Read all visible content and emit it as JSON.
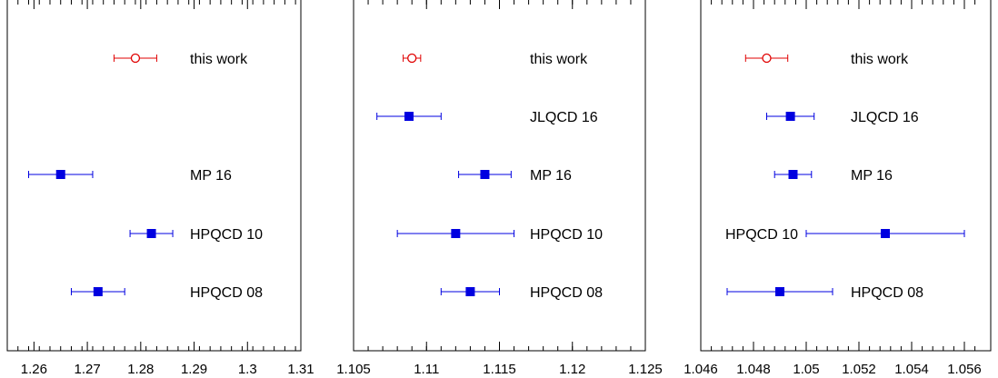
{
  "chart_data": [
    {
      "type": "scatter",
      "xlim": [
        1.255,
        1.31
      ],
      "xticks": [
        "1.26",
        "1.27",
        "1.28",
        "1.29",
        "1.3",
        "1.31"
      ],
      "xtick_values": [
        1.26,
        1.27,
        1.28,
        1.29,
        1.3,
        1.31
      ],
      "minor_step": 0.002,
      "grid": false,
      "entries": [
        {
          "label": "this work",
          "x": 1.279,
          "err": 0.004,
          "style": "open-circle",
          "color": "#e00000",
          "row": 0
        },
        {
          "label": "MP 16",
          "x": 1.265,
          "err": 0.006,
          "style": "filled-square",
          "color": "#0000e0",
          "row": 2
        },
        {
          "label": "HPQCD 10",
          "x": 1.282,
          "err": 0.004,
          "style": "filled-square",
          "color": "#0000e0",
          "row": 3
        },
        {
          "label": "HPQCD 08",
          "x": 1.272,
          "err": 0.005,
          "style": "filled-square",
          "color": "#0000e0",
          "row": 4
        }
      ]
    },
    {
      "type": "scatter",
      "xlim": [
        1.105,
        1.125
      ],
      "xticks": [
        "1.105",
        "1.11",
        "1.115",
        "1.12",
        "1.125"
      ],
      "xtick_values": [
        1.105,
        1.11,
        1.115,
        1.12,
        1.125
      ],
      "minor_step": 0.001,
      "grid": false,
      "entries": [
        {
          "label": "this work",
          "x": 1.109,
          "err": 0.0006,
          "style": "open-circle",
          "color": "#e00000",
          "row": 0
        },
        {
          "label": "JLQCD 16",
          "x": 1.1088,
          "err": 0.0022,
          "style": "filled-square",
          "color": "#0000e0",
          "row": 1
        },
        {
          "label": "MP 16",
          "x": 1.114,
          "err": 0.0018,
          "style": "filled-square",
          "color": "#0000e0",
          "row": 2
        },
        {
          "label": "HPQCD 10",
          "x": 1.112,
          "err": 0.004,
          "style": "filled-square",
          "color": "#0000e0",
          "row": 3
        },
        {
          "label": "HPQCD 08",
          "x": 1.113,
          "err": 0.002,
          "style": "filled-square",
          "color": "#0000e0",
          "row": 4
        }
      ]
    },
    {
      "type": "scatter",
      "xlim": [
        1.046,
        1.057
      ],
      "xticks": [
        "1.046",
        "1.048",
        "1.05",
        "1.052",
        "1.054",
        "1.056"
      ],
      "xtick_values": [
        1.046,
        1.048,
        1.05,
        1.052,
        1.054,
        1.056
      ],
      "minor_step": 0.0004,
      "grid": false,
      "entries": [
        {
          "label": "this work",
          "x": 1.0485,
          "err": 0.0008,
          "style": "open-circle",
          "color": "#e00000",
          "row": 0
        },
        {
          "label": "JLQCD 16",
          "x": 1.0494,
          "err": 0.0009,
          "style": "filled-square",
          "color": "#0000e0",
          "row": 1
        },
        {
          "label": "MP 16",
          "x": 1.0495,
          "err": 0.0007,
          "style": "filled-square",
          "color": "#0000e0",
          "row": 2
        },
        {
          "label": "HPQCD 10",
          "x": 1.053,
          "err": 0.003,
          "style": "filled-square",
          "color": "#0000e0",
          "row": 3,
          "label_side": "left"
        },
        {
          "label": "HPQCD 08",
          "x": 1.049,
          "err": 0.002,
          "style": "filled-square",
          "color": "#0000e0",
          "row": 4
        }
      ]
    }
  ]
}
